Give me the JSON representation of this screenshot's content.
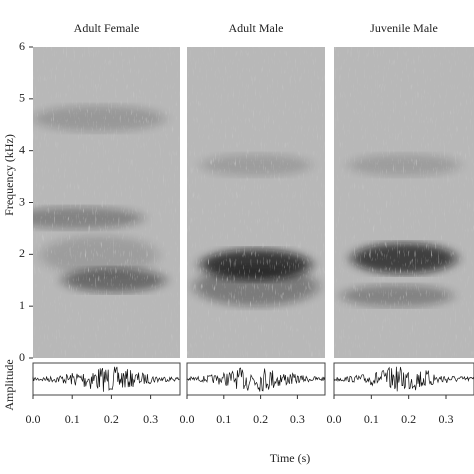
{
  "figure": {
    "ylabel": "Frequency (kHz)",
    "amplitude_label": "Amplitude",
    "xlabel": "Time (s)"
  },
  "chart_data": [
    {
      "type": "spectrogram",
      "title": "Adult Female",
      "xlim": [
        0,
        0.375
      ],
      "xticks": [
        {
          "value": 0,
          "label": "0.0"
        },
        0.1,
        0.2,
        0.3
      ],
      "ylim": [
        0,
        6
      ],
      "yticks": [
        0,
        1,
        2,
        3,
        4,
        5,
        6
      ]
    },
    {
      "type": "spectrogram",
      "title": "Adult Male",
      "xlim": [
        0,
        0.375
      ],
      "xticks": [
        {
          "value": 0,
          "label": "0.0"
        },
        0.1,
        0.2,
        0.3
      ],
      "ylim": [
        0,
        6
      ]
    },
    {
      "type": "spectrogram",
      "title": "Juvenile Male",
      "xlim": [
        0,
        0.375
      ],
      "xticks": [
        {
          "value": 0,
          "label": "0.0"
        },
        0.1,
        0.2,
        0.3
      ],
      "ylim": [
        0,
        6
      ]
    }
  ]
}
